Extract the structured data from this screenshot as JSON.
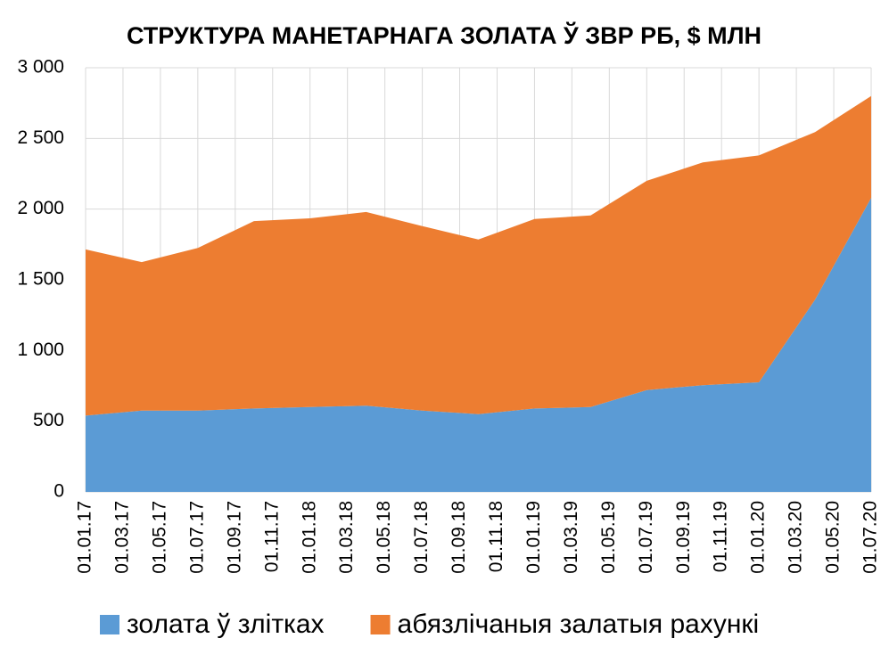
{
  "chart_data": {
    "type": "stacked_area",
    "title": "СТРУКТУРА МАНЕТАРНАГА ЗОЛАТА Ў ЗВР РБ, $ МЛН",
    "x": [
      "01.01.17",
      "01.04.17",
      "01.07.17",
      "01.10.17",
      "01.01.18",
      "01.04.18",
      "01.07.18",
      "01.10.18",
      "01.01.19",
      "01.04.19",
      "01.07.19",
      "01.10.19",
      "01.01.20",
      "01.04.20",
      "01.07.20"
    ],
    "xticks": [
      "01.01.17",
      "01.03.17",
      "01.05.17",
      "01.07.17",
      "01.09.17",
      "01.11.17",
      "01.01.18",
      "01.03.18",
      "01.05.18",
      "01.07.18",
      "01.09.18",
      "01.11.18",
      "01.01.19",
      "01.03.19",
      "01.05.19",
      "01.07.19",
      "01.09.19",
      "01.11.19",
      "01.01.20",
      "01.03.20",
      "01.05.20",
      "01.07.20"
    ],
    "series": [
      {
        "name": "золата ў злітках",
        "color": "#5b9bd5",
        "values": [
          540,
          575,
          575,
          590,
          600,
          610,
          575,
          550,
          590,
          600,
          720,
          755,
          775,
          1360,
          2080
        ]
      },
      {
        "name": "абязлічаныя залатыя рахункі",
        "color": "#ed7d31",
        "values": [
          1175,
          1050,
          1150,
          1325,
          1335,
          1370,
          1305,
          1235,
          1340,
          1355,
          1480,
          1575,
          1605,
          1185,
          720
        ]
      }
    ],
    "ylim": [
      0,
      3000
    ],
    "yticks": [
      0,
      500,
      {
        "value": 1000,
        "label": "1 000"
      },
      {
        "value": 1500,
        "label": "1 500"
      },
      {
        "value": 2000,
        "label": "2 000"
      },
      {
        "value": 2500,
        "label": "2 500"
      },
      {
        "value": 3000,
        "label": "3 000"
      }
    ],
    "grid": true,
    "legend": "bottom"
  }
}
